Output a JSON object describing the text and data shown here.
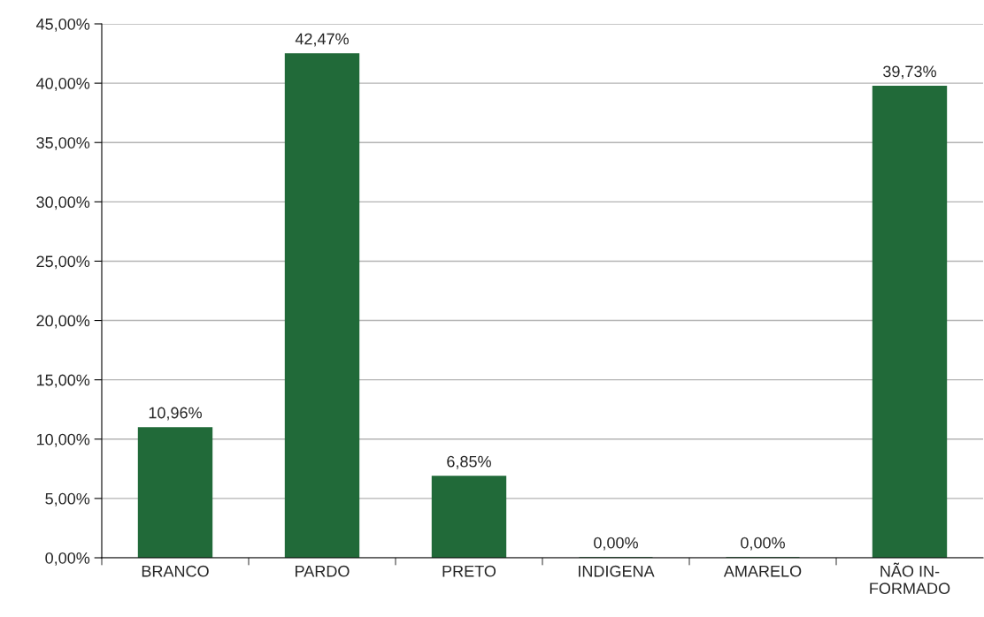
{
  "chart_data": {
    "type": "bar",
    "categories": [
      "BRANCO",
      "PARDO",
      "PRETO",
      "INDIGENA",
      "AMARELO",
      "NÃO IN-\nFORMADO"
    ],
    "values": [
      10.96,
      42.47,
      6.85,
      0,
      0,
      39.73
    ],
    "value_labels": [
      "10,96%",
      "42,47%",
      "6,85%",
      "0,00%",
      "0,00%",
      "39,73%"
    ],
    "color": "#216a39",
    "ylim": [
      0,
      45
    ],
    "yticks": [
      {
        "value": 0,
        "label": "0,00%"
      },
      {
        "value": 5,
        "label": "5,00%"
      },
      {
        "value": 10,
        "label": "10,00%"
      },
      {
        "value": 15,
        "label": "15,00%"
      },
      {
        "value": 20,
        "label": "20,00%"
      },
      {
        "value": 25,
        "label": "25,00%"
      },
      {
        "value": 30,
        "label": "30,00%"
      },
      {
        "value": 35,
        "label": "35,00%"
      },
      {
        "value": 40,
        "label": "40,00%"
      },
      {
        "value": 45,
        "label": "45,00%"
      }
    ],
    "grid": "y"
  }
}
